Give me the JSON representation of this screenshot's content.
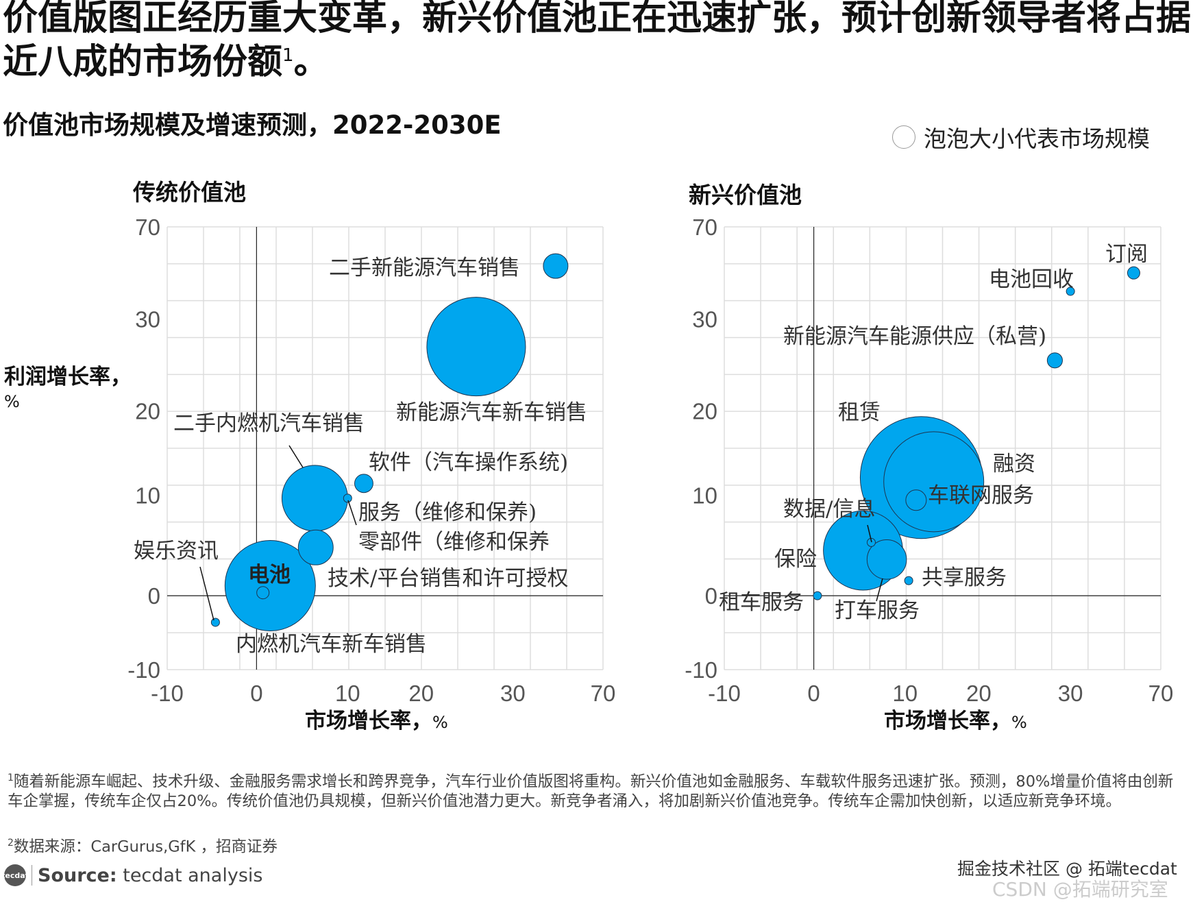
{
  "title": {
    "text": "价值版图正经历重大变革，新兴价值池正在迅速扩张，预计创新领导者将占据近八成的市场份额",
    "sup": "1",
    "end": "。"
  },
  "subtitle": "价值池市场规模及增速预测，2022-2030E",
  "legend": {
    "text": "泡泡大小代表市场规模",
    "icon": "empty-circle-icon"
  },
  "colors": {
    "bubble": "#00A6EE",
    "bubble_stroke": "#1d3550",
    "grid": "#dddddd",
    "axis": "#222222"
  },
  "chart_data": [
    {
      "type": "scatter",
      "title": "传统价值池",
      "xlabel": "市场增长率，",
      "xunit": "%",
      "ylabel": "利润增长率，",
      "yunit": "%",
      "xticks": [
        "-10",
        "0",
        "10",
        "20",
        "30",
        "70"
      ],
      "yticks": [
        "70",
        "30",
        "20",
        "10",
        "0",
        "-10"
      ],
      "xlim": [
        -10,
        70
      ],
      "ylim": [
        -10,
        70
      ],
      "scale": "non-uniform (piecewise)",
      "grid": true,
      "points": [
        {
          "label": "二手新能源汽车销售",
          "x": 49,
          "y": 53,
          "size": 9
        },
        {
          "label": "新能源汽车新车销售",
          "x": 26,
          "y": 27,
          "size": 144
        },
        {
          "label": "二手内燃机汽车销售",
          "x": 6.4,
          "y": 9.7,
          "size": 64
        },
        {
          "label": "软件（汽车操作系统)",
          "x": 12.2,
          "y": 11.4,
          "size": 5
        },
        {
          "label": "服务（维修和保养)",
          "x": 10,
          "y": 9.7,
          "size": 1
        },
        {
          "label": "零部件（维修和保养",
          "x": 6.5,
          "y": 4.8,
          "size": 18
        },
        {
          "label": "内燃机汽车新车销售",
          "x": 1.5,
          "y": 1,
          "size": 121
        },
        {
          "label": "电池",
          "x": 0.7,
          "y": 0.3,
          "size": 2.25
        },
        {
          "label": "技术/平台销售和许可授权",
          "x": 0.7,
          "y": 0.3,
          "size": 0
        },
        {
          "label": "娱乐资讯",
          "x": -4.6,
          "y": -3.6,
          "size": 1
        }
      ]
    },
    {
      "type": "scatter",
      "title": "新兴价值池",
      "xlabel": "市场增长率，",
      "xunit": "%",
      "xticks": [
        "-10",
        "0",
        "10",
        "20",
        "30",
        "70"
      ],
      "yticks": [
        "70",
        "30",
        "20",
        "10",
        "0",
        "-10"
      ],
      "xlim": [
        -10,
        70
      ],
      "ylim": [
        -10,
        70
      ],
      "scale": "non-uniform (piecewise)",
      "grid": true,
      "points": [
        {
          "label": "订阅",
          "x": 58,
          "y": 50,
          "size": 2.25
        },
        {
          "label": "电池回收",
          "x": 30,
          "y": 42,
          "size": 1
        },
        {
          "label": "新能源汽车能源供应（私营)",
          "x": 28.3,
          "y": 25.5,
          "size": 3.4
        },
        {
          "label": "租赁",
          "x": 12.2,
          "y": 12.1,
          "size": 220
        },
        {
          "label": "融资",
          "x": 13.9,
          "y": 11.6,
          "size": 148
        },
        {
          "label": "车联网服务",
          "x": 11.5,
          "y": 9.5,
          "size": 6.25
        },
        {
          "label": "保险",
          "x": 5.4,
          "y": 4.5,
          "size": 93
        },
        {
          "label": "打车服务",
          "x": 8,
          "y": 3.6,
          "size": 23
        },
        {
          "label": "数据/信息",
          "x": 6.3,
          "y": 5.3,
          "size": 1
        },
        {
          "label": "共享服务",
          "x": 10.5,
          "y": 1.5,
          "size": 1
        },
        {
          "label": "租车服务",
          "x": 0.4,
          "y": 0,
          "size": 1
        }
      ]
    }
  ],
  "footnotes": {
    "note1_sup": "1",
    "note1": "随着新能源车崛起、技术升级、金融服务需求增长和跨界竞争，汽车行业价值版图将重构。新兴价值池如金融服务、车载软件服务迅速扩张。预测，80%增量价值将由创新车企掌握，传统车企仅占20%。传统价值池仍具规模，但新兴价值池潜力更大。新竞争者涌入，将加剧新兴价值池竞争。传统车企需加快创新，以适应新竞争环境。",
    "note2_sup": "2",
    "note2": "数据来源：CarGurus,GfK ，招商证券"
  },
  "source": {
    "logo": "tecdat",
    "label": "Source:",
    "text": " tecdat analysis"
  },
  "watermark": {
    "line1": "掘金技术社区 @ 拓端tecdat",
    "line2": "CSDN @拓端研究室"
  }
}
